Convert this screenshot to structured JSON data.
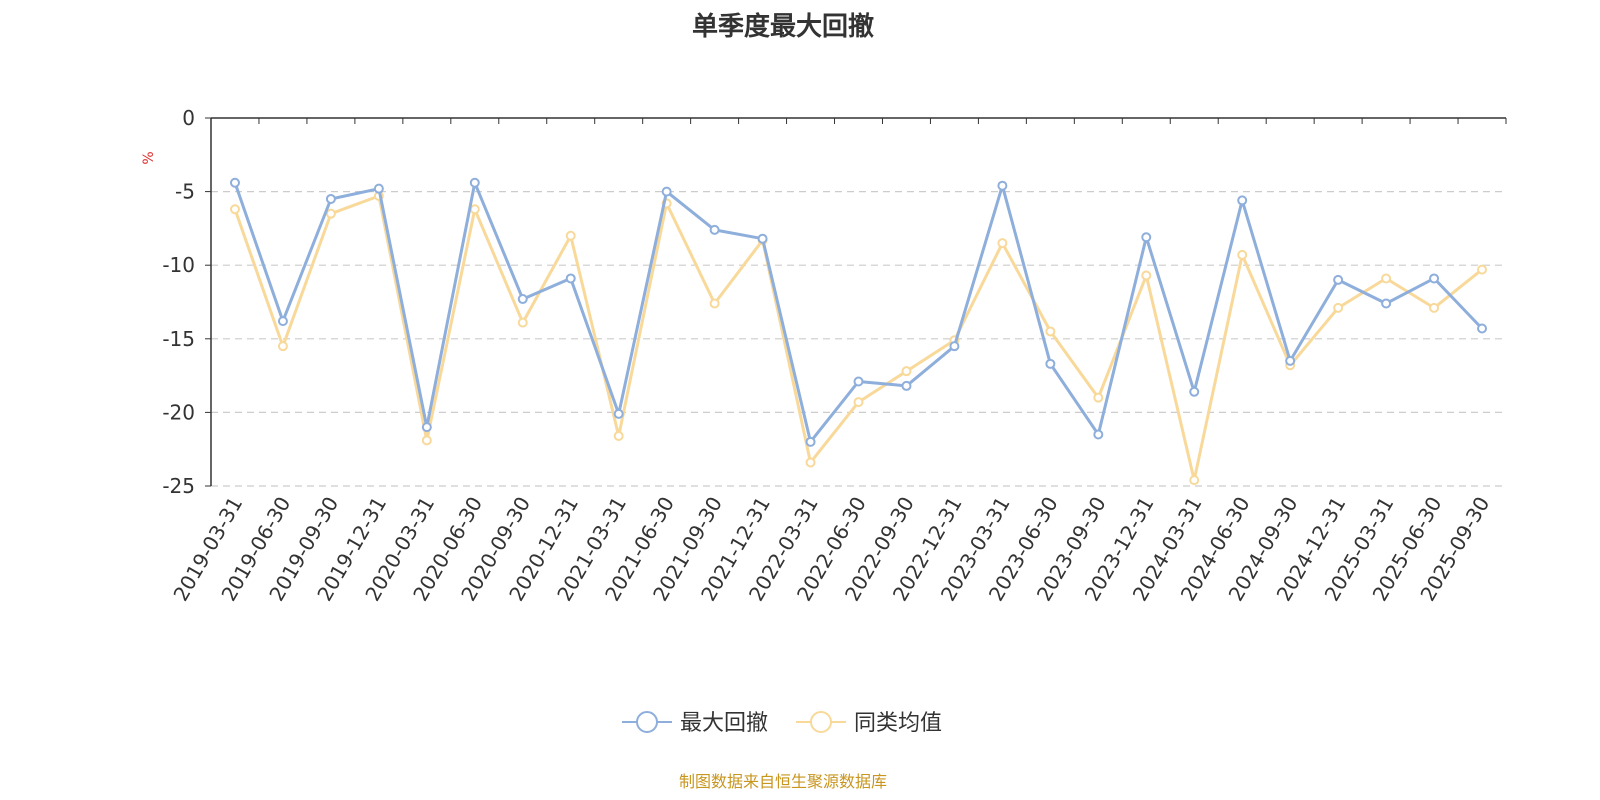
{
  "chart_data": {
    "type": "line",
    "title": "单季度最大回撤",
    "ylabel": "%",
    "ylim": [
      -25,
      0
    ],
    "yticks": [
      0,
      -5,
      -10,
      -15,
      -20,
      -25
    ],
    "grid": true,
    "legend_position": "bottom",
    "categories": [
      "2019-03-31",
      "2019-06-30",
      "2019-09-30",
      "2019-12-31",
      "2020-03-31",
      "2020-06-30",
      "2020-09-30",
      "2020-12-31",
      "2021-03-31",
      "2021-06-30",
      "2021-09-30",
      "2021-12-31",
      "2022-03-31",
      "2022-06-30",
      "2022-09-30",
      "2022-12-31",
      "2023-03-31",
      "2023-06-30",
      "2023-09-30",
      "2023-12-31",
      "2024-03-31",
      "2024-06-30",
      "2024-09-30",
      "2024-12-31",
      "2025-03-31",
      "2025-06-30",
      "2025-09-30"
    ],
    "series": [
      {
        "name": "最大回撤",
        "color": "#8eaedb",
        "values": [
          -4.4,
          -13.8,
          -5.5,
          -4.8,
          -21.0,
          -4.4,
          -12.3,
          -10.9,
          -20.1,
          -5.0,
          -7.6,
          -8.2,
          -22.0,
          -17.9,
          -18.2,
          -15.5,
          -4.6,
          -16.7,
          -21.5,
          -8.1,
          -18.6,
          -5.6,
          -16.5,
          -11.0,
          -12.6,
          -10.9,
          -14.3
        ]
      },
      {
        "name": "同类均值",
        "color": "#f8d99a",
        "values": [
          -6.2,
          -15.5,
          -6.5,
          -5.3,
          -21.9,
          -6.2,
          -13.9,
          -8.0,
          -21.6,
          -5.8,
          -12.6,
          -8.3,
          -23.4,
          -19.3,
          -17.2,
          -15.1,
          -8.5,
          -14.5,
          -19.0,
          -10.7,
          -24.6,
          -9.3,
          -16.8,
          -12.9,
          -10.9,
          -12.9,
          -10.3
        ]
      }
    ]
  },
  "footer": {
    "source": "制图数据来自恒生聚源数据库"
  }
}
